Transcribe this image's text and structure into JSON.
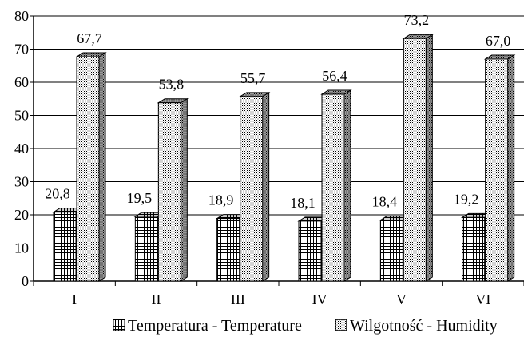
{
  "chart_data": {
    "type": "bar",
    "title": "",
    "xlabel": "",
    "ylabel": "",
    "ylim": [
      0,
      80
    ],
    "yticks": [
      0,
      10,
      20,
      30,
      40,
      50,
      60,
      70,
      80
    ],
    "grid": true,
    "legend_position": "bottom",
    "categories": [
      "I",
      "II",
      "III",
      "IV",
      "V",
      "VI"
    ],
    "series": [
      {
        "name": "Temperatura - Temperature",
        "pattern": "grid",
        "values": [
          20.8,
          19.5,
          18.9,
          18.1,
          18.4,
          19.2
        ],
        "labels": [
          "20,8",
          "19,5",
          "18,9",
          "18,1",
          "18,4",
          "19,2"
        ]
      },
      {
        "name": "Wilgotność - Humidity",
        "pattern": "dots",
        "values": [
          67.7,
          53.8,
          55.7,
          56.4,
          73.2,
          67.0
        ],
        "labels": [
          "67,7",
          "53,8",
          "55,7",
          "56,4",
          "73,2",
          "67,0"
        ]
      }
    ]
  }
}
